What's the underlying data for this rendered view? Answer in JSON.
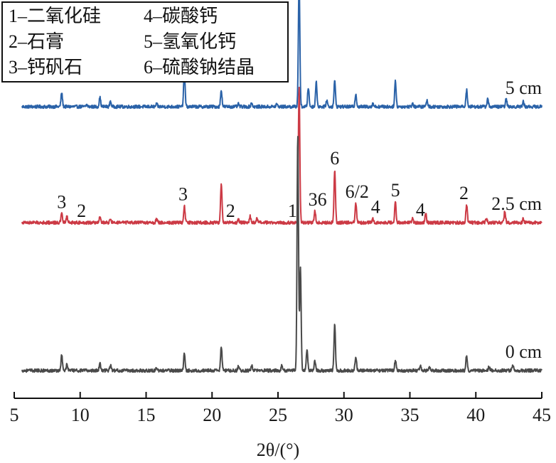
{
  "chart_data": {
    "type": "line",
    "xlabel": "2θ/(°)",
    "xlim": [
      5,
      45
    ],
    "x_ticks": [
      5,
      10,
      15,
      20,
      25,
      30,
      35,
      40,
      45
    ],
    "legend": [
      {
        "label": "1–二氧化硅"
      },
      {
        "label": "2–石膏"
      },
      {
        "label": "3–钙矾石"
      },
      {
        "label": "4–碳酸钙"
      },
      {
        "label": "5–氢氧化钙"
      },
      {
        "label": "6–硫酸钠结晶"
      }
    ],
    "series": [
      {
        "label": "5 cm",
        "color": "#2a62a8",
        "baseline": 0.2,
        "peaks": [
          [
            8.6,
            0.22
          ],
          [
            10.5,
            0.03
          ],
          [
            11.5,
            0.14
          ],
          [
            12.3,
            0.08
          ],
          [
            15.8,
            0.04
          ],
          [
            17.9,
            0.56
          ],
          [
            20.7,
            0.26
          ],
          [
            22.0,
            0.04
          ],
          [
            23.0,
            0.06
          ],
          [
            24.9,
            0.04
          ],
          [
            26.6,
            2.0
          ],
          [
            27.3,
            0.3
          ],
          [
            27.9,
            0.38
          ],
          [
            28.7,
            0.1
          ],
          [
            29.3,
            0.4
          ],
          [
            30.9,
            0.2
          ],
          [
            32.2,
            0.05
          ],
          [
            33.9,
            0.4
          ],
          [
            35.2,
            0.05
          ],
          [
            36.3,
            0.1
          ],
          [
            39.3,
            0.26
          ],
          [
            40.9,
            0.12
          ],
          [
            42.3,
            0.12
          ],
          [
            43.6,
            0.08
          ]
        ]
      },
      {
        "label": "2.5 cm",
        "color": "#cc3a45",
        "baseline": 0.2,
        "peaks": [
          [
            8.6,
            0.14
          ],
          [
            9.0,
            0.1
          ],
          [
            11.5,
            0.1
          ],
          [
            12.3,
            0.05
          ],
          [
            15.8,
            0.06
          ],
          [
            17.9,
            0.26
          ],
          [
            20.7,
            0.62
          ],
          [
            22.0,
            0.04
          ],
          [
            22.9,
            0.1
          ],
          [
            23.4,
            0.06
          ],
          [
            26.6,
            2.1
          ],
          [
            27.8,
            0.18
          ],
          [
            29.3,
            0.82
          ],
          [
            30.9,
            0.3
          ],
          [
            32.2,
            0.06
          ],
          [
            33.9,
            0.32
          ],
          [
            35.2,
            0.06
          ],
          [
            36.2,
            0.14
          ],
          [
            39.3,
            0.28
          ],
          [
            40.8,
            0.06
          ],
          [
            42.2,
            0.18
          ],
          [
            43.6,
            0.06
          ]
        ]
      },
      {
        "label": "0 cm",
        "color": "#4a4a4a",
        "baseline": 0.2,
        "peaks": [
          [
            8.6,
            0.24
          ],
          [
            9.0,
            0.1
          ],
          [
            11.5,
            0.12
          ],
          [
            12.3,
            0.08
          ],
          [
            15.8,
            0.04
          ],
          [
            17.9,
            0.26
          ],
          [
            20.7,
            0.38
          ],
          [
            22.0,
            0.06
          ],
          [
            23.0,
            0.08
          ],
          [
            25.3,
            0.08
          ],
          [
            26.5,
            3.7
          ],
          [
            26.7,
            1.6
          ],
          [
            27.2,
            0.32
          ],
          [
            27.8,
            0.16
          ],
          [
            29.3,
            0.72
          ],
          [
            30.9,
            0.22
          ],
          [
            33.9,
            0.16
          ],
          [
            35.8,
            0.08
          ],
          [
            36.5,
            0.06
          ],
          [
            39.3,
            0.24
          ],
          [
            41.0,
            0.06
          ],
          [
            42.8,
            0.08
          ]
        ]
      }
    ],
    "annotations": [
      {
        "text": "1",
        "x": 26.1,
        "series": "2.5 cm"
      },
      {
        "text": "3",
        "x": 8.6,
        "series": "2.5 cm"
      },
      {
        "text": "2",
        "x": 10.1,
        "series": "2.5 cm"
      },
      {
        "text": "3",
        "x": 17.8,
        "series": "2.5 cm"
      },
      {
        "text": "2",
        "x": 21.4,
        "series": "2.5 cm"
      },
      {
        "text": "36",
        "x": 28.0,
        "series": "2.5 cm"
      },
      {
        "text": "6",
        "x": 29.3,
        "series": "2.5 cm"
      },
      {
        "text": "6/2",
        "x": 31.0,
        "series": "2.5 cm"
      },
      {
        "text": "4",
        "x": 32.4,
        "series": "2.5 cm"
      },
      {
        "text": "5",
        "x": 33.9,
        "series": "2.5 cm"
      },
      {
        "text": "4",
        "x": 35.8,
        "series": "2.5 cm"
      },
      {
        "text": "2",
        "x": 39.1,
        "series": "2.5 cm"
      }
    ]
  }
}
